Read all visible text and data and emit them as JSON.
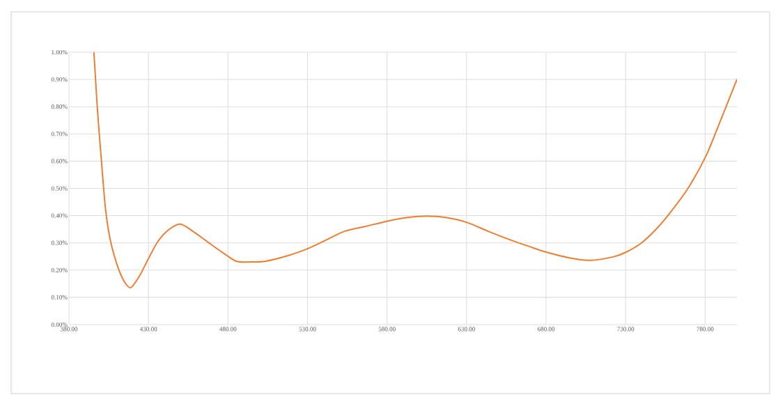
{
  "chart_data": {
    "type": "line",
    "xlim": [
      380,
      800
    ],
    "ylim": [
      0,
      1
    ],
    "grid": true,
    "marker": "none",
    "line_style": "solid",
    "xticks": [
      {
        "value": 380,
        "label": "380.00"
      },
      {
        "value": 430,
        "label": "430.00"
      },
      {
        "value": 480,
        "label": "480.00"
      },
      {
        "value": 530,
        "label": "530.00"
      },
      {
        "value": 580,
        "label": "580.00"
      },
      {
        "value": 630,
        "label": "630.00"
      },
      {
        "value": 680,
        "label": "680.00"
      },
      {
        "value": 730,
        "label": "730.00"
      },
      {
        "value": 780,
        "label": "780.00"
      }
    ],
    "yticks": [
      {
        "value": 0,
        "label": "0.00%"
      },
      {
        "value": 0.1,
        "label": "0.10%"
      },
      {
        "value": 0.2,
        "label": "0.20%"
      },
      {
        "value": 0.3,
        "label": "0.30%"
      },
      {
        "value": 0.4,
        "label": "0.40%"
      },
      {
        "value": 0.5,
        "label": "0.50%"
      },
      {
        "value": 0.6,
        "label": "0.60%"
      },
      {
        "value": 0.7,
        "label": "0.70%"
      },
      {
        "value": 0.8,
        "label": "0.80%"
      },
      {
        "value": 0.9,
        "label": "0.90%"
      },
      {
        "value": 1,
        "label": "1.00%"
      }
    ],
    "series": [
      {
        "color": "#ed7d31",
        "x": [
          395.7,
          397.9,
          400.5,
          403,
          405.9,
          410.3,
          414.6,
          418.8,
          424.2,
          430.2,
          435.9,
          442.5,
          450,
          457.8,
          468,
          478.2,
          485.6,
          494.3,
          503.1,
          517.7,
          530.2,
          542.6,
          553.5,
          566,
          580.3,
          593.7,
          605.4,
          617.1,
          630.3,
          643.4,
          656.6,
          669.8,
          680.2,
          694.7,
          707.8,
          722.4,
          730.3,
          740,
          748.7,
          757.5,
          769.2,
          780.6,
          789.6,
          800
        ],
        "values": [
          1.0,
          0.79,
          0.595,
          0.424,
          0.313,
          0.219,
          0.16,
          0.136,
          0.177,
          0.245,
          0.305,
          0.347,
          0.369,
          0.343,
          0.3,
          0.258,
          0.232,
          0.23,
          0.232,
          0.253,
          0.279,
          0.313,
          0.343,
          0.36,
          0.38,
          0.394,
          0.398,
          0.393,
          0.375,
          0.343,
          0.313,
          0.286,
          0.266,
          0.245,
          0.236,
          0.249,
          0.266,
          0.3,
          0.347,
          0.407,
          0.5,
          0.62,
          0.748,
          0.9
        ]
      }
    ]
  }
}
